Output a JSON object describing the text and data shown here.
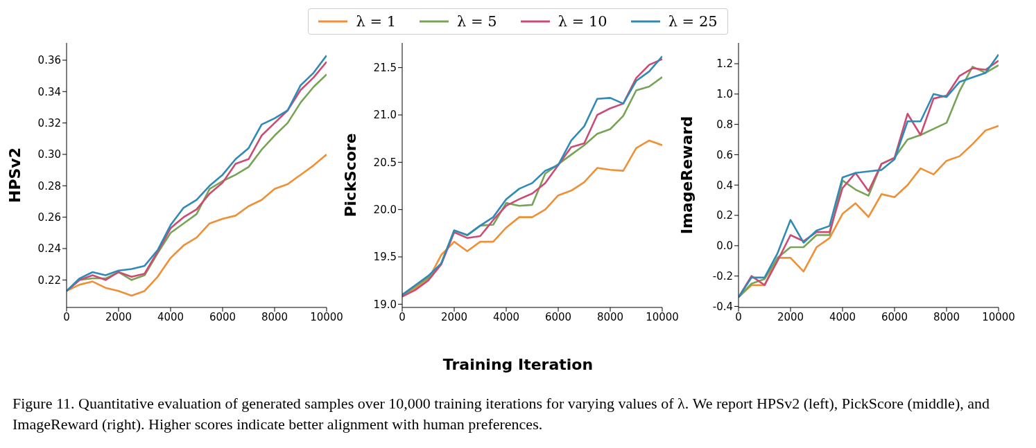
{
  "chart_data": [
    {
      "type": "line",
      "ylabel": "HPSv2",
      "legend": "top",
      "x": [
        0,
        500,
        1000,
        1500,
        2000,
        2500,
        3000,
        3500,
        4000,
        4500,
        5000,
        5500,
        6000,
        6500,
        7000,
        7500,
        8000,
        8500,
        9000,
        9500,
        10000
      ],
      "xlim": [
        0,
        10000
      ],
      "xticks": [
        0,
        2000,
        4000,
        6000,
        8000,
        10000
      ],
      "ylim": [
        0.2025,
        0.371
      ],
      "yticks": [
        0.22,
        0.24,
        0.26,
        0.28,
        {
          "value": 0.3,
          "label": "0.30"
        },
        0.32,
        0.34,
        0.36
      ],
      "marker": "none",
      "line_style": "solid",
      "series": [
        {
          "name": "λ = 1",
          "color": "#ef8f36",
          "values": [
            0.213,
            0.217,
            0.219,
            0.215,
            0.213,
            0.21,
            0.213,
            0.222,
            0.234,
            0.242,
            0.247,
            0.256,
            0.259,
            0.261,
            0.267,
            0.271,
            0.278,
            0.281,
            0.287,
            0.293,
            0.3
          ]
        },
        {
          "name": "λ = 5",
          "color": "#77a357",
          "values": [
            0.213,
            0.22,
            0.221,
            0.221,
            0.225,
            0.22,
            0.223,
            0.237,
            0.25,
            0.256,
            0.262,
            0.278,
            0.283,
            0.287,
            0.292,
            0.303,
            0.312,
            0.32,
            0.333,
            0.343,
            0.351
          ]
        },
        {
          "name": "λ = 10",
          "color": "#cc4b73",
          "values": [
            0.213,
            0.22,
            0.223,
            0.22,
            0.225,
            0.222,
            0.224,
            0.238,
            0.253,
            0.26,
            0.265,
            0.275,
            0.282,
            0.294,
            0.297,
            0.312,
            0.32,
            0.328,
            0.341,
            0.349,
            0.359
          ]
        },
        {
          "name": "λ = 25",
          "color": "#2f8ab6",
          "values": [
            0.213,
            0.221,
            0.225,
            0.223,
            0.226,
            0.227,
            0.229,
            0.239,
            0.255,
            0.266,
            0.271,
            0.28,
            0.287,
            0.297,
            0.304,
            0.319,
            0.323,
            0.328,
            0.344,
            0.352,
            0.363
          ]
        }
      ]
    },
    {
      "type": "line",
      "ylabel": "PickScore",
      "xlabel": "Training Iteration",
      "x": [
        0,
        500,
        1000,
        1500,
        2000,
        2500,
        3000,
        3500,
        4000,
        4500,
        5000,
        5500,
        6000,
        6500,
        7000,
        7500,
        8000,
        8500,
        9000,
        9500,
        10000
      ],
      "xlim": [
        0,
        10000
      ],
      "xticks": [
        0,
        2000,
        4000,
        6000,
        8000,
        10000
      ],
      "ylim": [
        18.966,
        21.761
      ],
      "yticks": [
        {
          "value": 19,
          "label": "19.0"
        },
        19.5,
        {
          "value": 20,
          "label": "20.0"
        },
        20.5,
        {
          "value": 21,
          "label": "21.0"
        },
        21.5
      ],
      "marker": "none",
      "line_style": "solid",
      "series": [
        {
          "color": "#ef8f36",
          "values": [
            19.09,
            19.17,
            19.26,
            19.52,
            19.66,
            19.56,
            19.66,
            19.66,
            19.81,
            19.92,
            19.92,
            20.0,
            20.15,
            20.2,
            20.29,
            20.44,
            20.42,
            20.41,
            20.65,
            20.73,
            20.68
          ]
        },
        {
          "color": "#77a357",
          "values": [
            19.09,
            19.19,
            19.28,
            19.43,
            19.78,
            19.73,
            19.83,
            19.84,
            20.07,
            20.04,
            20.05,
            20.38,
            20.48,
            20.58,
            20.68,
            20.8,
            20.85,
            20.99,
            21.26,
            21.3,
            21.4
          ]
        },
        {
          "color": "#cc4b73",
          "values": [
            19.08,
            19.15,
            19.25,
            19.42,
            19.76,
            19.7,
            19.72,
            19.89,
            20.04,
            20.11,
            20.17,
            20.28,
            20.47,
            20.66,
            20.7,
            21.0,
            21.07,
            21.12,
            21.39,
            21.53,
            21.59
          ]
        },
        {
          "color": "#2f8ab6",
          "values": [
            19.1,
            19.2,
            19.3,
            19.43,
            19.78,
            19.73,
            19.83,
            19.92,
            20.11,
            20.22,
            20.28,
            20.41,
            20.47,
            20.73,
            20.88,
            21.17,
            21.18,
            21.12,
            21.36,
            21.46,
            21.62
          ]
        }
      ]
    },
    {
      "type": "line",
      "ylabel": "ImageReward",
      "x": [
        0,
        500,
        1000,
        1500,
        2000,
        2500,
        3000,
        3500,
        4000,
        4500,
        5000,
        5500,
        6000,
        6500,
        7000,
        7500,
        8000,
        8500,
        9000,
        9500,
        10000
      ],
      "xlim": [
        0,
        10000
      ],
      "xticks": [
        0,
        2000,
        4000,
        6000,
        8000,
        10000
      ],
      "ylim": [
        -0.407,
        1.337
      ],
      "yticks": [
        -0.4,
        -0.2,
        {
          "value": 0,
          "label": "0.0"
        },
        0.2,
        0.4,
        0.6,
        0.8,
        {
          "value": 1,
          "label": "1.0"
        },
        1.2
      ],
      "marker": "none",
      "line_style": "solid",
      "annotations": [
        "Figure 11. Quantitative evaluation of generated samples over 10,000 training iterations for varying values of λ. We report HPSv2 (left), PickScore (middle), and ImageReward (right). Higher scores indicate better alignment with human preferences."
      ],
      "series": [
        {
          "color": "#ef8f36",
          "values": [
            -0.34,
            -0.26,
            -0.26,
            -0.08,
            -0.08,
            -0.17,
            -0.01,
            0.05,
            0.21,
            0.28,
            0.19,
            0.34,
            0.32,
            0.4,
            0.51,
            0.47,
            0.56,
            0.59,
            0.67,
            0.76,
            0.79
          ]
        },
        {
          "color": "#77a357",
          "values": [
            -0.34,
            -0.25,
            -0.22,
            -0.08,
            -0.01,
            -0.01,
            0.07,
            0.07,
            0.43,
            0.37,
            0.33,
            0.54,
            0.58,
            0.7,
            0.73,
            0.77,
            0.81,
            1.02,
            1.18,
            1.14,
            1.19
          ]
        },
        {
          "color": "#cc4b73",
          "values": [
            -0.34,
            -0.2,
            -0.26,
            -0.1,
            0.07,
            0.03,
            0.09,
            0.09,
            0.38,
            0.48,
            0.36,
            0.54,
            0.58,
            0.87,
            0.73,
            0.97,
            0.99,
            1.12,
            1.17,
            1.16,
            1.22
          ]
        },
        {
          "color": "#2f8ab6",
          "values": [
            -0.34,
            -0.21,
            -0.21,
            -0.05,
            0.17,
            0.02,
            0.1,
            0.13,
            0.45,
            0.48,
            0.49,
            0.5,
            0.57,
            0.82,
            0.82,
            1.0,
            0.98,
            1.08,
            1.11,
            1.14,
            1.26
          ]
        }
      ]
    }
  ]
}
